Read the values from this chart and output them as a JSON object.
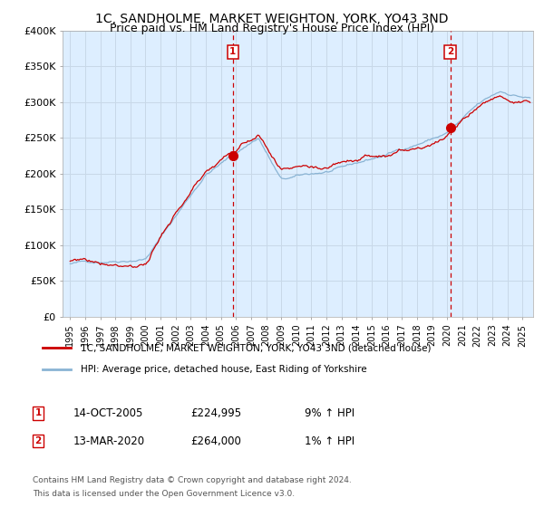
{
  "title": "1C, SANDHOLME, MARKET WEIGHTON, YORK, YO43 3ND",
  "subtitle": "Price paid vs. HM Land Registry's House Price Index (HPI)",
  "legend_line1": "1C, SANDHOLME, MARKET WEIGHTON, YORK, YO43 3ND (detached house)",
  "legend_line2": "HPI: Average price, detached house, East Riding of Yorkshire",
  "footnote1": "Contains HM Land Registry data © Crown copyright and database right 2024.",
  "footnote2": "This data is licensed under the Open Government Licence v3.0.",
  "sale1_label": "1",
  "sale1_date": "14-OCT-2005",
  "sale1_price": "£224,995",
  "sale1_hpi": "9% ↑ HPI",
  "sale2_label": "2",
  "sale2_date": "13-MAR-2020",
  "sale2_price": "£264,000",
  "sale2_hpi": "1% ↑ HPI",
  "sale1_year": 2005.79,
  "sale2_year": 2020.2,
  "sale1_price_val": 224995,
  "sale2_price_val": 264000,
  "ylim": [
    0,
    400000
  ],
  "xlim_start": 1994.5,
  "xlim_end": 2025.7,
  "background_color": "#ffffff",
  "plot_bg_color": "#ddeeff",
  "grid_color": "#c8d8e8",
  "hpi_color": "#8ab4d4",
  "price_color": "#cc0000",
  "sale_marker_color": "#cc0000",
  "vline_color": "#cc0000",
  "title_fontsize": 10,
  "subtitle_fontsize": 9
}
